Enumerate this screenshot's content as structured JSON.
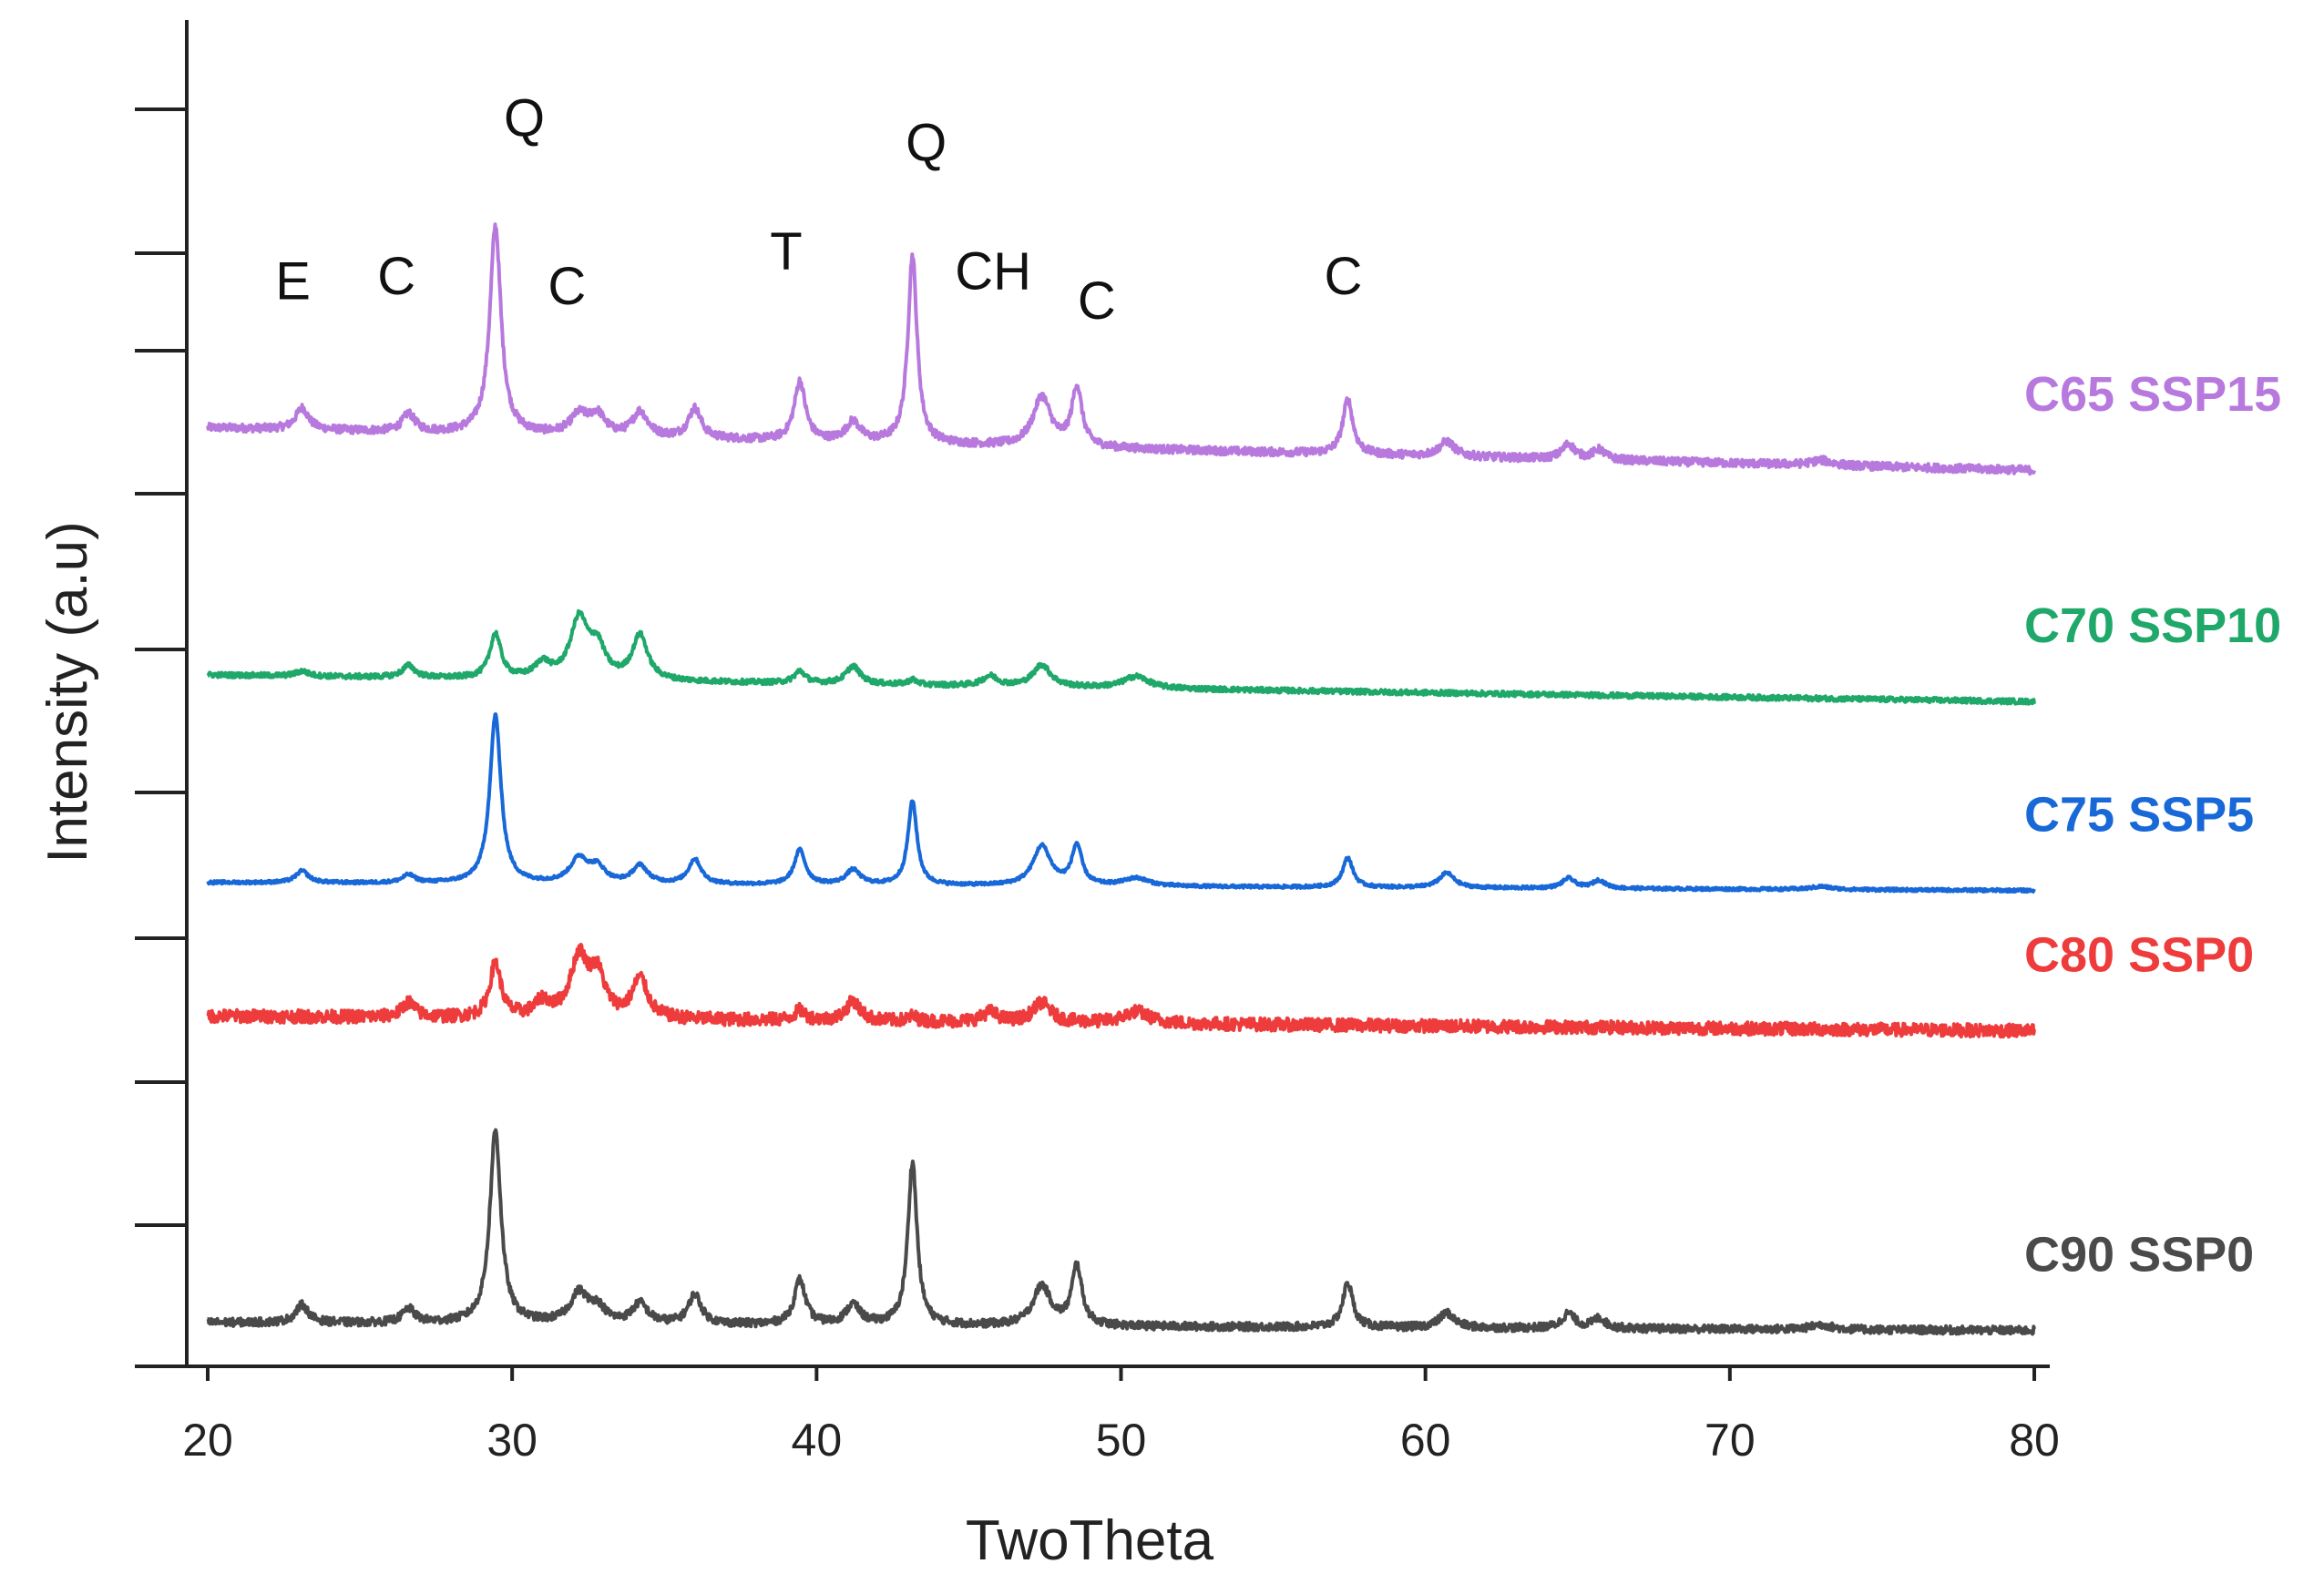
{
  "chart_data": {
    "type": "line",
    "title": "",
    "xlabel": "TwoTheta",
    "ylabel": "Intensity (a.u)",
    "xlim": [
      19.2,
      80.5
    ],
    "xticks": [
      20,
      30,
      40,
      50,
      60,
      70,
      80
    ],
    "grid": false,
    "legend": "inline-right",
    "peaks": [
      {
        "pos": 23.1,
        "w": 0.25
      },
      {
        "pos": 26.6,
        "w": 0.25
      },
      {
        "pos": 29.45,
        "w": 0.22
      },
      {
        "pos": 31.0,
        "w": 0.3
      },
      {
        "pos": 32.2,
        "w": 0.35
      },
      {
        "pos": 32.8,
        "w": 0.3
      },
      {
        "pos": 34.2,
        "w": 0.3
      },
      {
        "pos": 36.0,
        "w": 0.25
      },
      {
        "pos": 39.45,
        "w": 0.22
      },
      {
        "pos": 41.2,
        "w": 0.28
      },
      {
        "pos": 43.15,
        "w": 0.18
      },
      {
        "pos": 45.7,
        "w": 0.3
      },
      {
        "pos": 47.4,
        "w": 0.35
      },
      {
        "pos": 48.55,
        "w": 0.2
      },
      {
        "pos": 50.5,
        "w": 0.5
      },
      {
        "pos": 57.45,
        "w": 0.2
      },
      {
        "pos": 60.7,
        "w": 0.3
      },
      {
        "pos": 64.7,
        "w": 0.25
      },
      {
        "pos": 65.7,
        "w": 0.25
      },
      {
        "pos": 73.0,
        "w": 0.4
      }
    ],
    "series": [
      {
        "name": "C65 SSP15",
        "color": "#b779dd",
        "baseline_start": 0.905,
        "baseline_end": 0.862,
        "noise": 0.004,
        "heights": [
          0.022,
          0.018,
          0.21,
          0.0,
          0.02,
          0.02,
          0.025,
          0.03,
          0.06,
          0.02,
          0.19,
          0.0,
          0.05,
          0.06,
          0.0,
          0.055,
          0.015,
          0.015,
          0.01,
          0.005
        ]
      },
      {
        "name": "C70 SSP10",
        "color": "#1fa86a",
        "baseline_start": 0.655,
        "baseline_end": 0.628,
        "noise": 0.0025,
        "heights": [
          0.005,
          0.012,
          0.045,
          0.015,
          0.06,
          0.03,
          0.045,
          0.0,
          0.012,
          0.018,
          0.005,
          0.01,
          0.022,
          0.0,
          0.012,
          0.0,
          0.0,
          0.0,
          0.0,
          0.0
        ]
      },
      {
        "name": "C75 SSP5",
        "color": "#1868d8",
        "baseline_start": 0.445,
        "baseline_end": 0.437,
        "noise": 0.0015,
        "heights": [
          0.012,
          0.008,
          0.17,
          0.0,
          0.025,
          0.015,
          0.018,
          0.025,
          0.035,
          0.015,
          0.085,
          0.0,
          0.04,
          0.04,
          0.008,
          0.03,
          0.015,
          0.01,
          0.008,
          0.003
        ]
      },
      {
        "name": "C80 SSP0",
        "color": "#ee3b3b",
        "baseline_start": 0.31,
        "baseline_end": 0.295,
        "noise": 0.0065,
        "heights": [
          0.0,
          0.015,
          0.055,
          0.015,
          0.06,
          0.04,
          0.04,
          0.0,
          0.01,
          0.02,
          0.005,
          0.01,
          0.02,
          0.0,
          0.012,
          0.0,
          0.0,
          0.0,
          0.0,
          0.0
        ]
      },
      {
        "name": "C90 SSP0",
        "color": "#4a4a4a",
        "baseline_start": 0.0,
        "baseline_end": -0.008,
        "noise": 0.004,
        "heights": [
          0.018,
          0.014,
          0.195,
          0.0,
          0.03,
          0.015,
          0.02,
          0.03,
          0.045,
          0.02,
          0.165,
          0.0,
          0.04,
          0.06,
          0.0,
          0.045,
          0.015,
          0.015,
          0.01,
          0.005
        ]
      }
    ],
    "annotations": [
      {
        "text": "E",
        "x": 22.8,
        "y": 1.035
      },
      {
        "text": "C",
        "x": 26.2,
        "y": 1.04
      },
      {
        "text": "Q",
        "x": 30.4,
        "y": 1.2
      },
      {
        "text": "C",
        "x": 31.8,
        "y": 1.03
      },
      {
        "text": "T",
        "x": 39.0,
        "y": 1.065
      },
      {
        "text": "Q",
        "x": 43.6,
        "y": 1.175
      },
      {
        "text": "CH",
        "x": 45.8,
        "y": 1.045
      },
      {
        "text": "C",
        "x": 49.2,
        "y": 1.015
      },
      {
        "text": "C",
        "x": 57.3,
        "y": 1.04
      }
    ]
  }
}
